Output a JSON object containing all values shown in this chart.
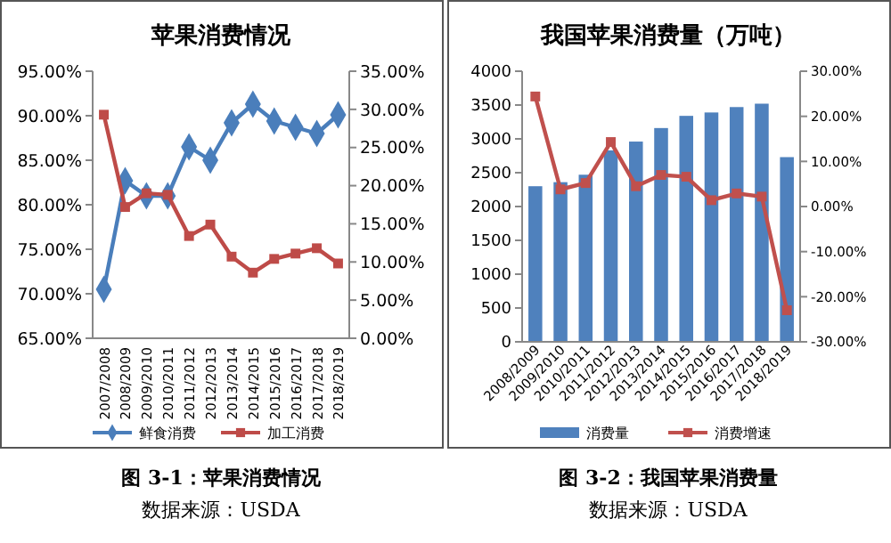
{
  "chart_data": [
    {
      "type": "line",
      "title": "苹果消费情况",
      "categories": [
        "2007/2008",
        "2008/2009",
        "2009/2010",
        "2010/2011",
        "2011/2012",
        "2012/2013",
        "2013/2014",
        "2014/2015",
        "2015/2016",
        "2016/2017",
        "2017/2018",
        "2018/2019"
      ],
      "series": [
        {
          "name": "鲜食消费",
          "color": "#4a7ebb",
          "marker": "diamond",
          "values": [
            70.5,
            82.7,
            81.0,
            81.0,
            86.5,
            85.0,
            89.2,
            91.3,
            89.4,
            88.7,
            88.0,
            90.1
          ]
        },
        {
          "name": "加工消费",
          "color": "#be4b48",
          "marker": "square",
          "axis": "y2",
          "values": [
            29.3,
            17.2,
            19.0,
            18.8,
            13.4,
            14.9,
            10.7,
            8.6,
            10.4,
            11.1,
            11.8,
            9.8
          ]
        }
      ],
      "ylim": [
        65,
        95
      ],
      "yticks": [
        {
          "value": 65,
          "label": "65.00%"
        },
        {
          "value": 70,
          "label": "70.00%"
        },
        {
          "value": 75,
          "label": "75.00%"
        },
        {
          "value": 80,
          "label": "80.00%"
        },
        {
          "value": 85,
          "label": "85.00%"
        },
        {
          "value": 90,
          "label": "90.00%"
        },
        {
          "value": 95,
          "label": "95.00%"
        }
      ],
      "y2lim": [
        0,
        35
      ],
      "y2ticks": [
        {
          "value": 0,
          "label": "0.00%"
        },
        {
          "value": 5,
          "label": "5.00%"
        },
        {
          "value": 10,
          "label": "10.00%"
        },
        {
          "value": 15,
          "label": "15.00%"
        },
        {
          "value": 20,
          "label": "20.00%"
        },
        {
          "value": 25,
          "label": "25.00%"
        },
        {
          "value": 30,
          "label": "30.00%"
        },
        {
          "value": 35,
          "label": "35.00%"
        }
      ],
      "legend": "bottom",
      "annotations": [
        "图 3-1：苹果消费情况",
        "数据来源：USDA"
      ]
    },
    {
      "type": "bar",
      "title": "我国苹果消费量（万吨）",
      "categories": [
        "2008/2009",
        "2009/2010",
        "2010/2011",
        "2011/2012",
        "2012/2013",
        "2013/2014",
        "2014/2015",
        "2015/2016",
        "2016/2017",
        "2017/2018",
        "2018/2019"
      ],
      "series": [
        {
          "name": "消费量",
          "color": "#4f81bd",
          "values": [
            2300,
            2360,
            2470,
            2830,
            2960,
            3160,
            3340,
            3390,
            3470,
            3520,
            2730
          ]
        },
        {
          "name": "消费增速",
          "type": "line",
          "color": "#c0504d",
          "marker": "square",
          "axis": "y2",
          "values": [
            24.4,
            3.8,
            5.2,
            14.3,
            4.5,
            7.0,
            6.6,
            1.4,
            2.9,
            2.2,
            -23.0
          ]
        }
      ],
      "ylim": [
        0,
        4000
      ],
      "yticks": [
        0,
        500,
        1000,
        1500,
        2000,
        2500,
        3000,
        3500,
        4000
      ],
      "y2lim": [
        -30,
        30
      ],
      "y2ticks": [
        {
          "value": -30,
          "label": "-30.00%"
        },
        {
          "value": -20,
          "label": "-20.00%"
        },
        {
          "value": -10,
          "label": "-10.00%"
        },
        {
          "value": 0,
          "label": "0.00%"
        },
        {
          "value": 10,
          "label": "10.00%"
        },
        {
          "value": 20,
          "label": "20.00%"
        },
        {
          "value": 30,
          "label": "30.00%"
        }
      ],
      "legend": "bottom",
      "annotations": [
        "图 3-2：我国苹果消费量",
        "数据来源：USDA"
      ]
    }
  ]
}
